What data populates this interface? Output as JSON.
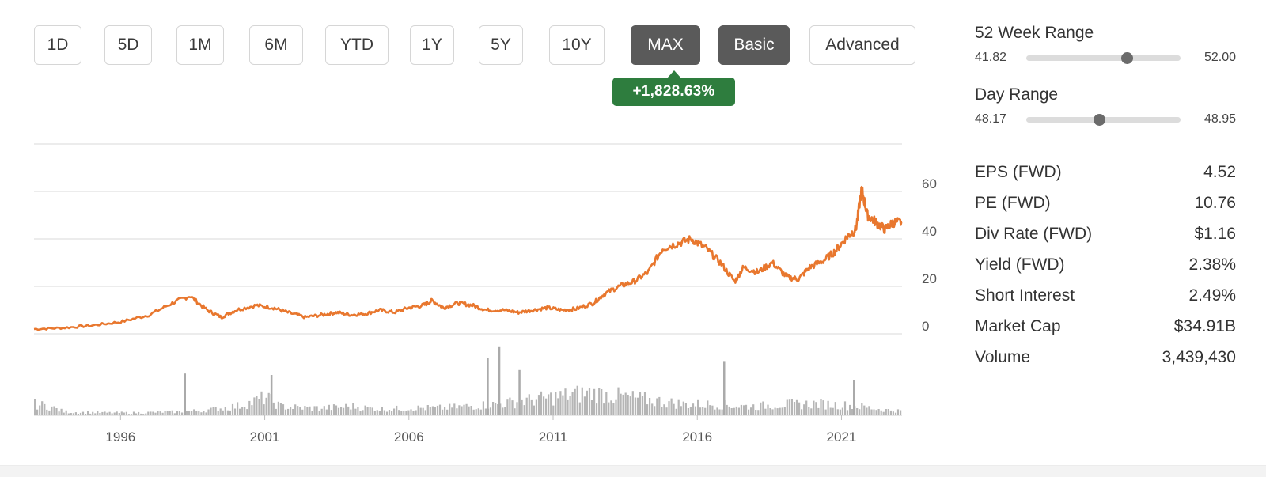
{
  "range_buttons": [
    {
      "label": "1D",
      "active": false
    },
    {
      "label": "5D",
      "active": false
    },
    {
      "label": "1M",
      "active": false
    },
    {
      "label": "6M",
      "active": false
    },
    {
      "label": "YTD",
      "active": false
    },
    {
      "label": "1Y",
      "active": false
    },
    {
      "label": "5Y",
      "active": false
    },
    {
      "label": "10Y",
      "active": false
    },
    {
      "label": "MAX",
      "active": true
    }
  ],
  "view_buttons": [
    {
      "label": "Basic",
      "active": true
    },
    {
      "label": "Advanced",
      "active": false
    }
  ],
  "change_badge": "+1,828.63%",
  "colors": {
    "price_line": "#e8772e",
    "volume_bars": "#b5b5b5",
    "badge": "#2e7d3e",
    "active_button": "#5a5a5a"
  },
  "stats": {
    "week52": {
      "title": "52 Week Range",
      "low": "41.82",
      "high": "52.00",
      "marker_fraction": 0.65
    },
    "day": {
      "title": "Day Range",
      "low": "48.17",
      "high": "48.95",
      "marker_fraction": 0.47
    },
    "rows": [
      {
        "label": "EPS (FWD)",
        "value": "4.52"
      },
      {
        "label": "PE (FWD)",
        "value": "10.76"
      },
      {
        "label": "Div Rate (FWD)",
        "value": "$1.16"
      },
      {
        "label": "Yield (FWD)",
        "value": "2.38%"
      },
      {
        "label": "Short Interest",
        "value": "2.49%"
      },
      {
        "label": "Market Cap",
        "value": "$34.91B"
      },
      {
        "label": "Volume",
        "value": "3,439,430"
      }
    ]
  },
  "chart_data": {
    "type": "line",
    "y_ticks": [
      "0",
      "20",
      "40",
      "60"
    ],
    "ylim": [
      0,
      80
    ],
    "x_ticks": [
      "1996",
      "2001",
      "2006",
      "2011",
      "2016",
      "2021"
    ],
    "xlim": [
      1993.5,
      2023.6
    ],
    "series": [
      {
        "x": [
          1993.5,
          1994.5,
          1995.5,
          1996.5,
          1997.5,
          1998.3,
          1998.9,
          1999.5,
          2000.0,
          2000.5,
          2001.2,
          2001.8,
          2002.3,
          2002.9,
          2003.5,
          2004.0,
          2004.5,
          2005.0,
          2005.5,
          2006.0,
          2006.5,
          2007.0,
          2007.3,
          2007.7,
          2008.2,
          2008.7,
          2009.2,
          2009.8,
          2010.3,
          2010.8,
          2011.3,
          2011.8,
          2012.3,
          2012.9,
          2013.3,
          2013.8,
          2014.3,
          2014.8,
          2015.3,
          2015.8,
          2016.3,
          2016.8,
          2017.3,
          2017.8,
          2018.1,
          2018.6,
          2019.1,
          2019.6,
          2020.0,
          2020.4,
          2020.9,
          2021.3,
          2021.7,
          2022.0,
          2022.2,
          2022.4,
          2022.7,
          2023.0,
          2023.3,
          2023.6
        ],
        "y": [
          2,
          2.5,
          3.5,
          5,
          8,
          13,
          16,
          10,
          7,
          10,
          12,
          11,
          9,
          7,
          8,
          9,
          8,
          8.5,
          10,
          9,
          11,
          12,
          14,
          11,
          13,
          12,
          10,
          10,
          9,
          10,
          11,
          10,
          10.5,
          13,
          17,
          20,
          22,
          26,
          36,
          38,
          40,
          36,
          30,
          22,
          28,
          26,
          30,
          24,
          23,
          28,
          31,
          35,
          41,
          44,
          61,
          50,
          47,
          44,
          47,
          47
        ]
      }
    ],
    "volume": {
      "description": "relative daily volume (arbitrary units)",
      "values": [
        0.3,
        0.25,
        0.1,
        0.08,
        0.08,
        0.07,
        0.07,
        0.07,
        0.08,
        0.09,
        0.1,
        0.12,
        0.15,
        0.2,
        0.25,
        0.35,
        0.5,
        0.25,
        0.22,
        0.2,
        0.2,
        0.22,
        0.25,
        0.2,
        0.18,
        0.18,
        0.2,
        0.2,
        0.2,
        0.22,
        0.25,
        0.28,
        0.3,
        0.35,
        0.4,
        0.45,
        0.5,
        0.55,
        0.6,
        0.6,
        0.55,
        0.5,
        0.45,
        0.4,
        0.35,
        0.3,
        0.3,
        0.3,
        0.28,
        0.25,
        0.25,
        0.28,
        0.3,
        0.3,
        0.32,
        0.3,
        0.28,
        0.25,
        0.2,
        0.15,
        0.12
      ],
      "spikes": [
        {
          "x": 1998.7,
          "v": 0.6
        },
        {
          "x": 2001.7,
          "v": 0.58
        },
        {
          "x": 2009.6,
          "v": 0.98
        },
        {
          "x": 2009.2,
          "v": 0.82
        },
        {
          "x": 2010.3,
          "v": 0.65
        },
        {
          "x": 2017.4,
          "v": 0.78
        },
        {
          "x": 2021.9,
          "v": 0.5
        }
      ]
    }
  }
}
